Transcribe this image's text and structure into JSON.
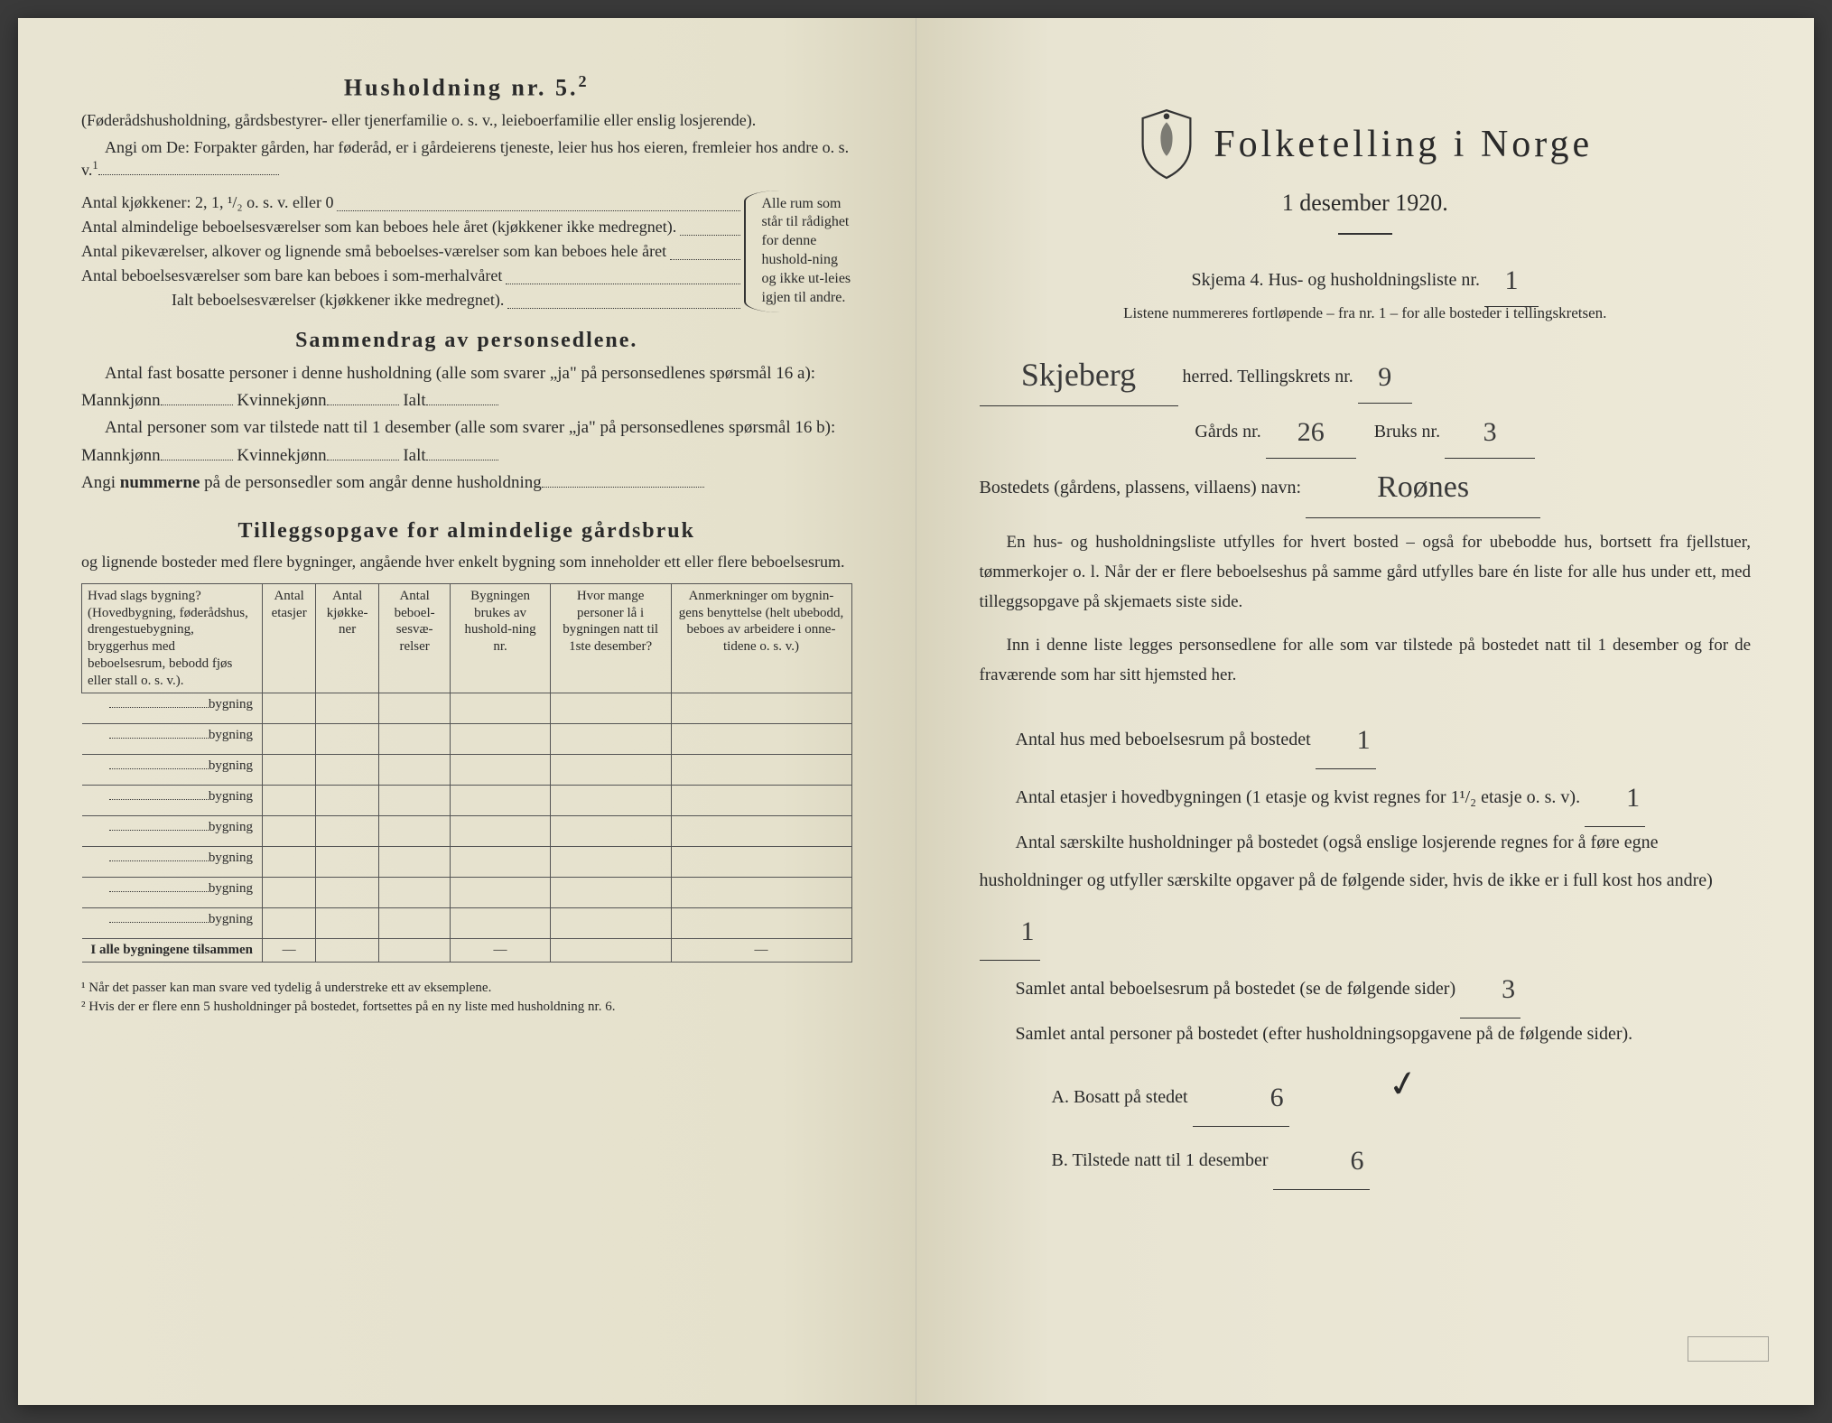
{
  "left": {
    "h5_title": "Husholdning nr. 5.",
    "h5_sup": "2",
    "h5_par1": "(Føderådshusholdning, gårdsbestyrer- eller tjenerfamilie o. s. v., leieboerfamilie eller enslig losjerende).",
    "h5_par2": "Angi om De: Forpakter gården, har føderåd, er i gårdeierens tjeneste, leier hus hos eieren, fremleier hos andre o. s. v.",
    "h5_sup2": "1",
    "kitchens_label": "Antal kjøkkener: 2, 1, ¹/₂ o. s. v. eller 0",
    "rooms1": "Antal almindelige beboelsesværelser som kan beboes hele året (kjøkkener ikke medregnet).",
    "rooms2": "Antal pikeværelser, alkover og lignende små beboelses-værelser som kan beboes hele året",
    "rooms3": "Antal beboelsesværelser som bare kan beboes i som-merhalvåret",
    "rooms_total": "Ialt beboelsesværelser  (kjøkkener ikke medregnet).",
    "bracket_text": "Alle rum som står til rådighet for denne hushold-ning og ikke ut-leies igjen til andre.",
    "summary_title": "Sammendrag av personsedlene.",
    "summary_l1": "Antal fast bosatte personer i denne husholdning (alle som svarer „ja\" på personsedlenes spørsmål 16 a): Mannkjønn",
    "summary_kv": "Kvinnekjønn",
    "summary_ialt": "Ialt",
    "summary_l2": "Antal personer som var tilstede natt til 1 desember (alle som svarer „ja\" på personsedlenes spørsmål 16 b): Mannkjønn",
    "summary_l3_a": "Angi ",
    "summary_l3_b": "nummerne",
    "summary_l3_c": " på de personsedler som angår denne husholdning",
    "tillegg_title": "Tilleggsopgave for almindelige gårdsbruk",
    "tillegg_sub": "og lignende bosteder med flere bygninger, angående hver enkelt bygning som inneholder ett eller flere beboelsesrum.",
    "table": {
      "headers": [
        "Hvad slags bygning?\n(Hovedbygning, føderådshus, drengestuebygning, bryggerhus med beboelsesrum, bebodd fjøs eller stall o. s. v.).",
        "Antal etasjer",
        "Antal kjøkke-ner",
        "Antal beboel-sesvæ-relser",
        "Bygningen brukes av hushold-ning nr.",
        "Hvor mange personer lå i bygningen natt til 1ste desember?",
        "Anmerkninger om bygnin-gens benyttelse (helt ubebodd, beboes av arbeidere i onne-tidene o. s. v.)"
      ],
      "row_label": "bygning",
      "total_label": "I alle bygningene tilsammen",
      "dash": "—",
      "row_count": 8
    },
    "footnote1": "¹ Når det passer kan man svare ved tydelig å understreke ett av eksemplene.",
    "footnote2": "² Hvis der er flere enn 5 husholdninger på bostedet, fortsettes på en ny liste med husholdning nr. 6."
  },
  "right": {
    "title": "Folketelling i Norge",
    "date": "1 desember 1920.",
    "skjema_a": "Skjema 4.   Hus- og husholdningsliste nr.",
    "skjema_val": "1",
    "listene": "Listene nummereres fortløpende – fra nr. 1 – for alle bosteder i tellingskretsen.",
    "herred_label": "herred.   Tellingskrets nr.",
    "herred_val": "Skjeberg",
    "krets_val": "9",
    "gard_label": "Gårds nr.",
    "gard_val": "26",
    "bruk_label": "Bruks nr.",
    "bruk_val": "3",
    "bosted_label": "Bostedets (gårdens, plassens, villaens) navn:",
    "bosted_val": "Roønes",
    "para1": "En hus- og husholdningsliste utfylles for hvert bosted – også for ubebodde hus, bortsett fra fjellstuer, tømmerkojer o. l.  Når der er flere beboelseshus på samme gård utfylles bare én liste for alle hus under ett, med tilleggsopgave på skjemaets siste side.",
    "para2": "Inn i denne liste legges personsedlene for alle som var tilstede på bostedet natt til 1 desember og for de fraværende som har sitt hjemsted her.",
    "f_hus_label": "Antal hus med beboelsesrum på bostedet",
    "f_hus_val": "1",
    "f_etasjer": "Antal etasjer i hovedbygningen (1 etasje og kvist regnes for 1¹/₂ etasje o. s. v).",
    "f_etasjer_val": "1",
    "f_hush": "Antal særskilte husholdninger på bostedet (også enslige losjerende regnes for å føre egne husholdninger og utfyller særskilte opgaver på de følgende sider, hvis de ikke er i full kost hos andre)",
    "f_hush_val": "1",
    "f_rum": "Samlet antal beboelsesrum på bostedet (se de følgende sider)",
    "f_rum_val": "3",
    "f_pers": "Samlet antal personer på bostedet (efter husholdningsopgavene på de følgende sider).",
    "f_A": "A.  Bosatt på stedet",
    "f_A_val": "6",
    "f_B": "B.  Tilstede natt til 1 desember",
    "f_B_val": "6",
    "checkmark": "✓"
  },
  "colors": {
    "paper_left": "#e5e1cc",
    "paper_right": "#ede9d8",
    "ink": "#2a2a2a",
    "handwriting": "#3a3a3a"
  }
}
